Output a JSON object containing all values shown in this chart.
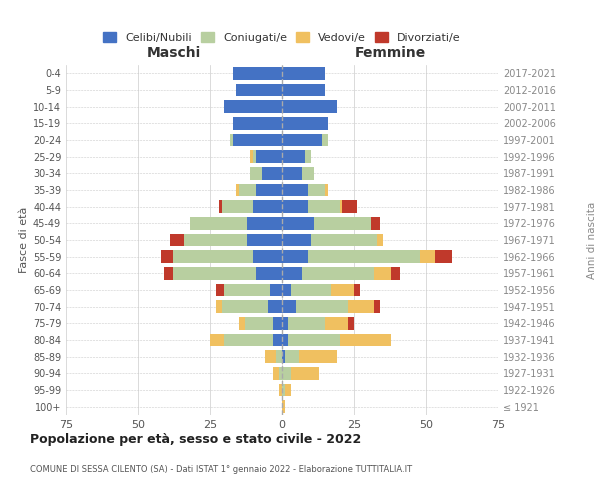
{
  "age_groups": [
    "100+",
    "95-99",
    "90-94",
    "85-89",
    "80-84",
    "75-79",
    "70-74",
    "65-69",
    "60-64",
    "55-59",
    "50-54",
    "45-49",
    "40-44",
    "35-39",
    "30-34",
    "25-29",
    "20-24",
    "15-19",
    "10-14",
    "5-9",
    "0-4"
  ],
  "birth_years": [
    "≤ 1921",
    "1922-1926",
    "1927-1931",
    "1932-1936",
    "1937-1941",
    "1942-1946",
    "1947-1951",
    "1952-1956",
    "1957-1961",
    "1962-1966",
    "1967-1971",
    "1972-1976",
    "1977-1981",
    "1982-1986",
    "1987-1991",
    "1992-1996",
    "1997-2001",
    "2002-2006",
    "2007-2011",
    "2012-2016",
    "2017-2021"
  ],
  "colors": {
    "celibe": "#4472c4",
    "coniugato": "#b8cfa0",
    "vedovo": "#f0c060",
    "divorziato": "#c0392b"
  },
  "maschi": {
    "celibe": [
      0,
      0,
      0,
      0,
      3,
      3,
      5,
      4,
      9,
      10,
      12,
      12,
      10,
      9,
      7,
      9,
      17,
      17,
      20,
      16,
      17
    ],
    "coniugato": [
      0,
      0,
      1,
      2,
      17,
      10,
      16,
      16,
      29,
      28,
      22,
      20,
      11,
      6,
      4,
      1,
      1,
      0,
      0,
      0,
      0
    ],
    "vedovo": [
      0,
      1,
      2,
      4,
      5,
      2,
      2,
      0,
      0,
      0,
      0,
      0,
      0,
      1,
      0,
      1,
      0,
      0,
      0,
      0,
      0
    ],
    "divorziato": [
      0,
      0,
      0,
      0,
      0,
      0,
      0,
      3,
      3,
      4,
      5,
      0,
      1,
      0,
      0,
      0,
      0,
      0,
      0,
      0,
      0
    ]
  },
  "femmine": {
    "nubile": [
      0,
      0,
      0,
      1,
      2,
      2,
      5,
      3,
      7,
      9,
      10,
      11,
      9,
      9,
      7,
      8,
      14,
      16,
      19,
      15,
      15
    ],
    "coniugata": [
      0,
      1,
      3,
      5,
      18,
      13,
      18,
      14,
      25,
      39,
      23,
      20,
      11,
      6,
      4,
      2,
      2,
      0,
      0,
      0,
      0
    ],
    "vedova": [
      1,
      2,
      10,
      13,
      18,
      8,
      9,
      8,
      6,
      5,
      2,
      0,
      1,
      1,
      0,
      0,
      0,
      0,
      0,
      0,
      0
    ],
    "divorziata": [
      0,
      0,
      0,
      0,
      0,
      2,
      2,
      2,
      3,
      6,
      0,
      3,
      5,
      0,
      0,
      0,
      0,
      0,
      0,
      0,
      0
    ]
  },
  "title": "Popolazione per età, sesso e stato civile - 2022",
  "subtitle": "COMUNE DI SESSA CILENTO (SA) - Dati ISTAT 1° gennaio 2022 - Elaborazione TUTTITALIA.IT",
  "xlabel_maschi": "Maschi",
  "xlabel_femmine": "Femmine",
  "ylabel_left": "Fasce di età",
  "ylabel_right": "Anni di nascita",
  "xlim": 75,
  "bg_color": "#ffffff",
  "grid_color": "#cccccc"
}
